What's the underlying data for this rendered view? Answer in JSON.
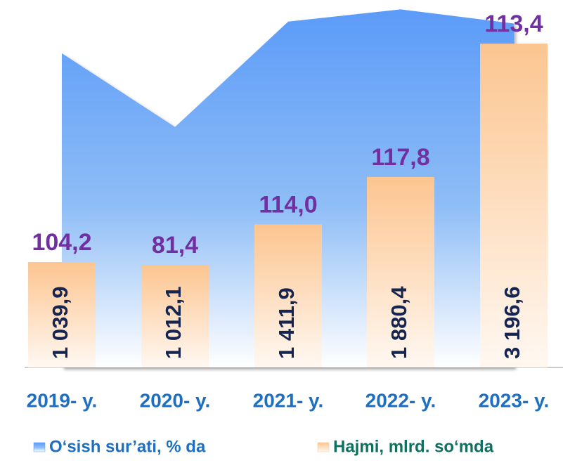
{
  "chart_data": {
    "type": "bar",
    "categories": [
      "2019- y.",
      "2020- y.",
      "2021- y.",
      "2022- y.",
      "2023- y."
    ],
    "series": [
      {
        "name": "O‘sish sur’ati, % da",
        "type": "area",
        "axis": "y2",
        "color": "#5b9bf8",
        "values": [
          104.2,
          81.4,
          114.0,
          117.8,
          113.4
        ],
        "value_labels": [
          "104,2",
          "81,4",
          "114,0",
          "117,8",
          "113,4"
        ]
      },
      {
        "name": "Hajmi, mlrd. so‘mda",
        "type": "bar",
        "color": "#fcc590",
        "values": [
          1039.9,
          1012.1,
          1411.9,
          1880.4,
          3196.6
        ],
        "value_labels": [
          "1 039,9",
          "1 012,1",
          "1 411,9",
          "1 880,4",
          "3 196,6"
        ]
      }
    ],
    "ylim": [
      0,
      3350
    ],
    "y2lim": [
      7,
      112
    ]
  }
}
